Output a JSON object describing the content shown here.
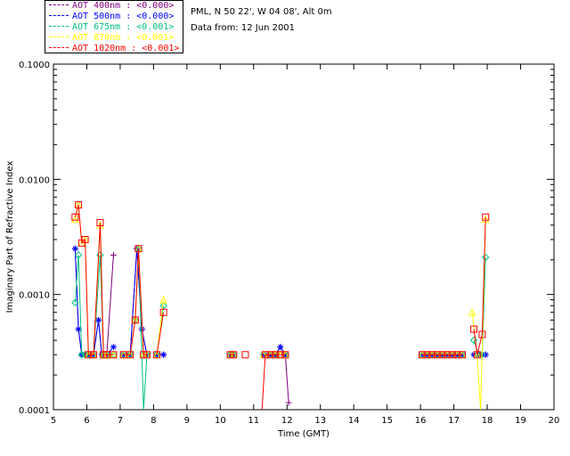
{
  "station": {
    "location": "PML, N 50 22', W 04 08', Alt 0m",
    "date": "Data from: 12 Jun 2001"
  },
  "chart_data": {
    "type": "line",
    "title": "",
    "xlabel": "Time (GMT)",
    "ylabel": "Imaginary Part of Refractive Index",
    "xlim": [
      5,
      20
    ],
    "ylim": [
      0.0001,
      0.1
    ],
    "yscale": "log",
    "x_ticks": [
      "5",
      "6",
      "7",
      "8",
      "9",
      "10",
      "11",
      "12",
      "13",
      "14",
      "15",
      "16",
      "17",
      "18",
      "19",
      "20"
    ],
    "y_ticks": [
      "0.0001",
      "0.0010",
      "0.0100",
      "0.1000"
    ],
    "series": [
      {
        "name": "AOT 400nm : <0.000>",
        "color": "#800080",
        "marker": "plus",
        "segments": [
          [
            [
              5.65,
              0.0025
            ],
            [
              5.75,
              0.0005
            ],
            [
              5.85,
              0.0003
            ],
            [
              5.95,
              0.0003
            ],
            [
              6.05,
              0.0003
            ],
            [
              6.2,
              0.0003
            ],
            [
              6.35,
              0.0006
            ],
            [
              6.45,
              0.0003
            ],
            [
              6.6,
              0.0003
            ],
            [
              6.8,
              0.0022
            ]
          ],
          [
            [
              7.1,
              0.0003
            ],
            [
              7.3,
              0.0003
            ],
            [
              7.5,
              0.0025
            ],
            [
              7.65,
              0.0005
            ],
            [
              7.8,
              0.0003
            ]
          ],
          [
            [
              8.1,
              0.0003
            ],
            [
              8.3,
              0.0003
            ]
          ],
          [
            [
              10.3,
              0.0003
            ],
            [
              10.4,
              0.0003
            ]
          ],
          [
            [
              11.3,
              0.0003
            ],
            [
              11.5,
              0.0003
            ],
            [
              11.65,
              0.0003
            ],
            [
              11.8,
              0.00035
            ],
            [
              11.95,
              0.0003
            ],
            [
              12.05,
              0.000115
            ]
          ],
          [
            [
              16.05,
              0.0003
            ],
            [
              16.2,
              0.0003
            ],
            [
              16.35,
              0.0003
            ],
            [
              16.5,
              0.0003
            ],
            [
              16.65,
              0.0003
            ],
            [
              16.8,
              0.0003
            ],
            [
              16.95,
              0.0003
            ],
            [
              17.1,
              0.0003
            ],
            [
              17.25,
              0.0003
            ]
          ],
          [
            [
              17.6,
              0.0003
            ],
            [
              17.75,
              0.0003
            ],
            [
              17.85,
              0.0003
            ],
            [
              17.95,
              0.0003
            ]
          ]
        ]
      },
      {
        "name": "AOT 500nm : <0.000>",
        "color": "#0000ff",
        "marker": "star",
        "segments": [
          [
            [
              5.65,
              0.0025
            ],
            [
              5.75,
              0.0005
            ],
            [
              5.85,
              0.0003
            ],
            [
              5.95,
              0.0003
            ],
            [
              6.05,
              0.0003
            ],
            [
              6.2,
              0.0003
            ],
            [
              6.35,
              0.0006
            ],
            [
              6.45,
              0.0003
            ],
            [
              6.6,
              0.0003
            ],
            [
              6.8,
              0.00035
            ]
          ],
          [
            [
              7.1,
              0.0003
            ],
            [
              7.3,
              0.0003
            ],
            [
              7.5,
              0.0025
            ],
            [
              7.65,
              0.0005
            ],
            [
              7.8,
              0.0003
            ]
          ],
          [
            [
              8.1,
              0.0003
            ],
            [
              8.3,
              0.0003
            ]
          ],
          [
            [
              10.3,
              0.0003
            ],
            [
              10.4,
              0.0003
            ]
          ],
          [
            [
              11.3,
              0.0003
            ],
            [
              11.5,
              0.0003
            ],
            [
              11.65,
              0.0003
            ],
            [
              11.8,
              0.00035
            ],
            [
              11.95,
              0.0003
            ]
          ],
          [
            [
              16.05,
              0.0003
            ],
            [
              16.2,
              0.0003
            ],
            [
              16.35,
              0.0003
            ],
            [
              16.5,
              0.0003
            ],
            [
              16.65,
              0.0003
            ],
            [
              16.8,
              0.0003
            ],
            [
              16.95,
              0.0003
            ],
            [
              17.1,
              0.0003
            ],
            [
              17.25,
              0.0003
            ]
          ],
          [
            [
              17.6,
              0.0003
            ],
            [
              17.75,
              0.0003
            ],
            [
              17.85,
              0.0003
            ],
            [
              17.95,
              0.0003
            ]
          ]
        ]
      },
      {
        "name": "AOT 675nm : <0.001>",
        "color": "#00c080",
        "marker": "diamond",
        "segments": [
          [
            [
              5.65,
              0.00085
            ],
            [
              5.75,
              0.0022
            ],
            [
              5.85,
              0.0003
            ],
            [
              5.95,
              0.0003
            ],
            [
              6.05,
              0.0003
            ],
            [
              6.2,
              0.0003
            ],
            [
              6.4,
              0.0022
            ],
            [
              6.5,
              0.0003
            ],
            [
              6.6,
              0.0003
            ],
            [
              6.8,
              0.0003
            ]
          ],
          [
            [
              7.1,
              0.0003
            ],
            [
              7.3,
              0.0003
            ],
            [
              7.45,
              0.0006
            ],
            [
              7.55,
              0.0025
            ],
            [
              7.7,
              0.0001
            ],
            [
              7.8,
              0.0003
            ]
          ],
          [
            [
              8.1,
              0.0003
            ],
            [
              8.3,
              0.0008
            ]
          ],
          [
            [
              10.3,
              0.0003
            ],
            [
              10.4,
              0.0003
            ]
          ],
          [
            [
              11.3,
              0.0003
            ],
            [
              11.5,
              0.0003
            ],
            [
              11.65,
              0.0003
            ],
            [
              11.8,
              0.0003
            ],
            [
              11.95,
              0.0003
            ]
          ],
          [
            [
              16.05,
              0.0003
            ],
            [
              16.2,
              0.0003
            ],
            [
              16.35,
              0.0003
            ],
            [
              16.5,
              0.0003
            ],
            [
              16.65,
              0.0003
            ],
            [
              16.8,
              0.0003
            ],
            [
              16.95,
              0.0003
            ],
            [
              17.1,
              0.0003
            ],
            [
              17.25,
              0.0003
            ]
          ],
          [
            [
              17.6,
              0.0004
            ],
            [
              17.75,
              0.0003
            ],
            [
              17.85,
              0.0003
            ],
            [
              17.95,
              0.0021
            ]
          ]
        ]
      },
      {
        "name": "AOT 870nm : <0.001>",
        "color": "#ffff00",
        "marker": "triangle",
        "segments": [
          [
            [
              5.65,
              0.0045
            ],
            [
              5.75,
              0.006
            ],
            [
              5.85,
              0.0028
            ],
            [
              5.95,
              0.003
            ],
            [
              6.05,
              0.0003
            ],
            [
              6.2,
              0.0003
            ],
            [
              6.4,
              0.004
            ],
            [
              6.5,
              0.0003
            ],
            [
              6.6,
              0.0003
            ],
            [
              6.8,
              0.0003
            ]
          ],
          [
            [
              7.1,
              0.0003
            ],
            [
              7.3,
              0.0003
            ],
            [
              7.45,
              0.0006
            ],
            [
              7.55,
              0.0025
            ],
            [
              7.7,
              0.0003
            ],
            [
              7.8,
              0.0003
            ]
          ],
          [
            [
              8.1,
              0.0003
            ],
            [
              8.3,
              0.0009
            ]
          ],
          [
            [
              10.3,
              0.0003
            ],
            [
              10.4,
              0.0003
            ]
          ],
          [
            [
              11.3,
              0.0003
            ],
            [
              11.5,
              0.0003
            ],
            [
              11.65,
              0.0003
            ],
            [
              11.8,
              0.0003
            ],
            [
              11.95,
              0.0003
            ]
          ],
          [
            [
              16.05,
              0.0003
            ],
            [
              16.2,
              0.0003
            ],
            [
              16.35,
              0.0003
            ],
            [
              16.5,
              0.0003
            ],
            [
              16.65,
              0.0003
            ],
            [
              16.8,
              0.0003
            ],
            [
              16.95,
              0.0003
            ],
            [
              17.1,
              0.0003
            ],
            [
              17.25,
              0.0003
            ]
          ],
          [
            [
              17.55,
              0.0007
            ],
            [
              17.7,
              0.0003
            ],
            [
              17.8,
              0.0001
            ],
            [
              17.95,
              0.0045
            ]
          ]
        ]
      },
      {
        "name": "AOT 1020nm : <0.001>",
        "color": "#ff0000",
        "marker": "square",
        "segments": [
          [
            [
              5.65,
              0.0047
            ],
            [
              5.75,
              0.006
            ],
            [
              5.85,
              0.0028
            ],
            [
              5.95,
              0.003
            ],
            [
              6.05,
              0.0003
            ],
            [
              6.2,
              0.0003
            ],
            [
              6.4,
              0.0042
            ],
            [
              6.5,
              0.0003
            ],
            [
              6.6,
              0.0003
            ],
            [
              6.8,
              0.0003
            ]
          ],
          [
            [
              7.1,
              0.0003
            ],
            [
              7.3,
              0.0003
            ],
            [
              7.45,
              0.0006
            ],
            [
              7.55,
              0.0025
            ],
            [
              7.7,
              0.0003
            ],
            [
              7.8,
              0.0003
            ]
          ],
          [
            [
              8.1,
              0.0003
            ],
            [
              8.3,
              0.0007
            ]
          ],
          [
            [
              10.3,
              0.0003
            ],
            [
              10.4,
              0.0003
            ]
          ],
          [
            [
              10.75,
              0.0003
            ]
          ],
          [
            [
              11.25,
              0.0001
            ],
            [
              11.35,
              0.0003
            ],
            [
              11.5,
              0.0003
            ],
            [
              11.65,
              0.0003
            ],
            [
              11.8,
              0.0003
            ],
            [
              11.95,
              0.0003
            ]
          ],
          [
            [
              16.05,
              0.0003
            ],
            [
              16.2,
              0.0003
            ],
            [
              16.35,
              0.0003
            ],
            [
              16.5,
              0.0003
            ],
            [
              16.65,
              0.0003
            ],
            [
              16.8,
              0.0003
            ],
            [
              16.95,
              0.0003
            ],
            [
              17.1,
              0.0003
            ],
            [
              17.25,
              0.0003
            ]
          ],
          [
            [
              17.6,
              0.0005
            ],
            [
              17.7,
              0.0003
            ],
            [
              17.85,
              0.00045
            ],
            [
              17.95,
              0.0047
            ]
          ]
        ]
      }
    ]
  }
}
